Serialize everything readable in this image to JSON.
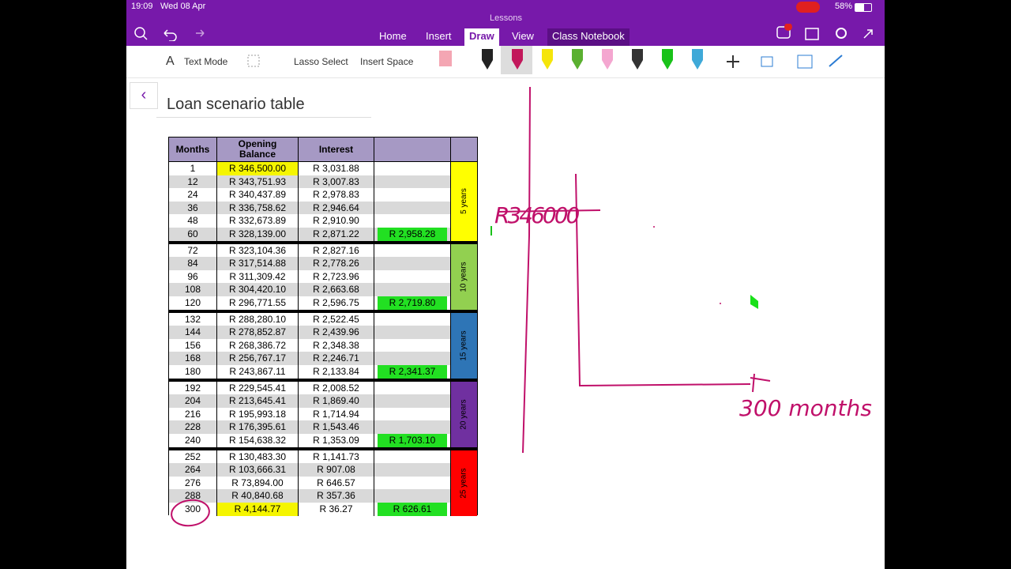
{
  "status": {
    "time": "19:09",
    "date": "Wed 08 Apr",
    "battery": "58%"
  },
  "app_title": "Lessons",
  "tabs": [
    "Home",
    "Insert",
    "Draw",
    "View",
    "Class Notebook"
  ],
  "active_tab": 2,
  "tools": [
    "Text Mode",
    "Lasso Select",
    "Insert Space"
  ],
  "page_title": "Loan scenario table",
  "table": {
    "headers": [
      "Months",
      "Opening Balance",
      "Interest"
    ],
    "groups": [
      {
        "label": "5 years",
        "color": "#ffff00",
        "payment": "R 2,958.28",
        "rows": [
          [
            "1",
            "R 346,500.00",
            "R 3,031.88"
          ],
          [
            "12",
            "R 343,751.93",
            "R 3,007.83"
          ],
          [
            "24",
            "R 340,437.89",
            "R 2,978.83"
          ],
          [
            "36",
            "R 336,758.62",
            "R 2,946.64"
          ],
          [
            "48",
            "R 332,673.89",
            "R 2,910.90"
          ],
          [
            "60",
            "R 328,139.00",
            "R 2,871.22"
          ]
        ]
      },
      {
        "label": "10 years",
        "color": "#92d050",
        "payment": "R 2,719.80",
        "rows": [
          [
            "72",
            "R 323,104.36",
            "R 2,827.16"
          ],
          [
            "84",
            "R 317,514.88",
            "R 2,778.26"
          ],
          [
            "96",
            "R 311,309.42",
            "R 2,723.96"
          ],
          [
            "108",
            "R 304,420.10",
            "R 2,663.68"
          ],
          [
            "120",
            "R 296,771.55",
            "R 2,596.75"
          ]
        ]
      },
      {
        "label": "15 years",
        "color": "#2e75b6",
        "payment": "R 2,341.37",
        "rows": [
          [
            "132",
            "R 288,280.10",
            "R 2,522.45"
          ],
          [
            "144",
            "R 278,852.87",
            "R 2,439.96"
          ],
          [
            "156",
            "R 268,386.72",
            "R 2,348.38"
          ],
          [
            "168",
            "R 256,767.17",
            "R 2,246.71"
          ],
          [
            "180",
            "R 243,867.11",
            "R 2,133.84"
          ]
        ]
      },
      {
        "label": "20 years",
        "color": "#7030a0",
        "payment": "R 1,703.10",
        "rows": [
          [
            "192",
            "R 229,545.41",
            "R 2,008.52"
          ],
          [
            "204",
            "R 213,645.41",
            "R 1,869.40"
          ],
          [
            "216",
            "R 195,993.18",
            "R 1,714.94"
          ],
          [
            "228",
            "R 176,395.61",
            "R 1,543.46"
          ],
          [
            "240",
            "R 154,638.32",
            "R 1,353.09"
          ]
        ]
      },
      {
        "label": "25 years",
        "color": "#ff0000",
        "payment": "R 626.61",
        "rows": [
          [
            "252",
            "R 130,483.30",
            "R 1,141.73"
          ],
          [
            "264",
            "R 103,666.31",
            "R 907.08"
          ],
          [
            "276",
            "R 73,894.00",
            "R 646.57"
          ],
          [
            "288",
            "R 40,840.68",
            "R 357.36"
          ],
          [
            "300",
            "R 4,144.77",
            "R 36.27"
          ]
        ]
      }
    ]
  },
  "annotations": [
    "R346000",
    "300 months"
  ]
}
